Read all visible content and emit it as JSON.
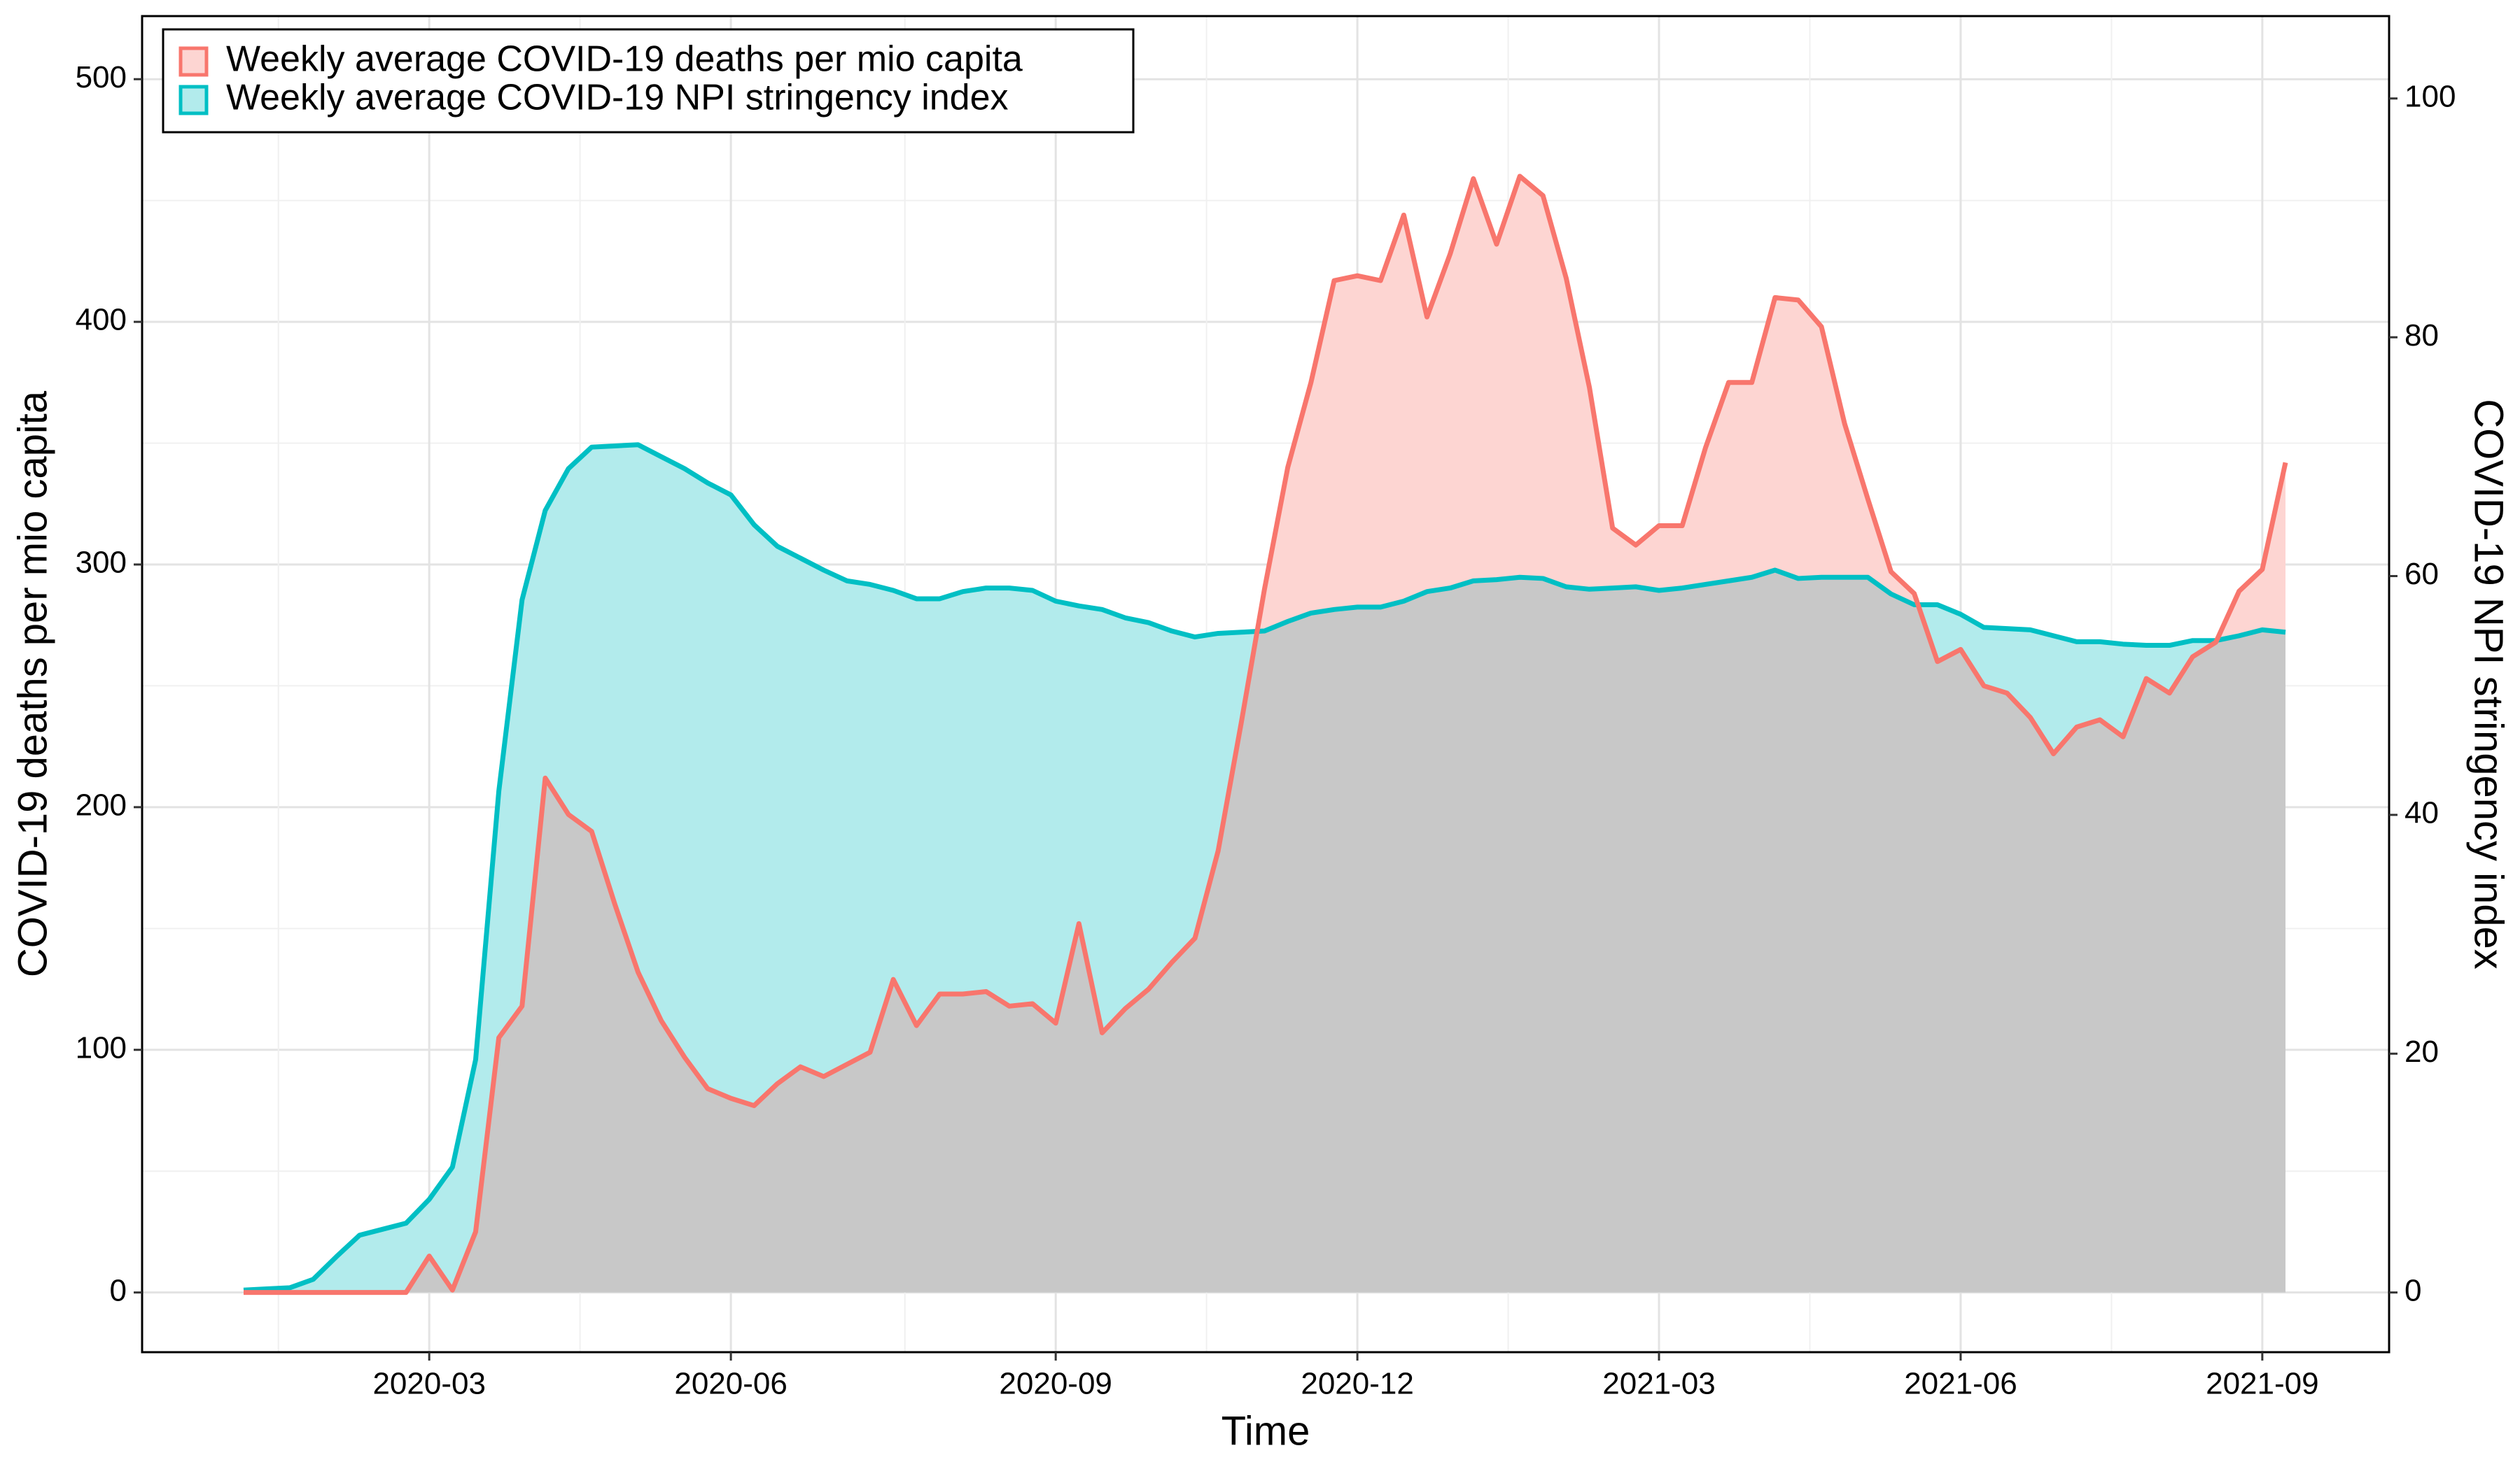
{
  "chart_data": {
    "type": "area-line",
    "x_label": "Time",
    "y_label": "COVID-19 deaths per mio capita",
    "y2_label": "COVID-19 NPI stringency index",
    "categories": [
      null,
      null,
      null,
      null,
      null,
      null,
      null,
      null,
      "2020-03",
      null,
      null,
      null,
      null,
      null,
      null,
      null,
      null,
      null,
      null,
      null,
      null,
      "2020-06",
      null,
      null,
      null,
      null,
      null,
      null,
      null,
      null,
      null,
      null,
      null,
      null,
      null,
      "2020-09",
      null,
      null,
      null,
      null,
      null,
      null,
      null,
      null,
      null,
      null,
      null,
      null,
      "2020-12",
      null,
      null,
      null,
      null,
      null,
      null,
      null,
      null,
      null,
      null,
      null,
      null,
      "2021-03",
      null,
      null,
      null,
      null,
      null,
      null,
      null,
      null,
      null,
      null,
      null,
      null,
      "2021-06",
      null,
      null,
      null,
      null,
      null,
      null,
      null,
      null,
      null,
      null,
      null,
      null,
      "2021-09",
      null
    ],
    "series": [
      {
        "name": "Weekly average COVID-19 deaths per mio capita",
        "color": "#F8766D",
        "fill": "#FDD5D2",
        "axis": "y",
        "values": [
          0,
          0,
          0,
          0,
          0,
          0,
          0,
          0,
          15,
          1,
          25,
          105,
          118,
          212,
          197,
          190,
          160,
          132,
          112,
          97,
          84,
          80,
          77,
          86,
          93,
          89,
          94,
          99,
          129,
          110,
          123,
          123,
          124,
          118,
          119,
          111,
          152,
          107,
          117,
          125,
          136,
          146,
          182,
          235,
          290,
          340,
          375,
          417,
          419,
          417,
          444,
          402,
          428,
          459,
          432,
          460,
          452,
          418,
          373,
          315,
          308,
          316,
          316,
          348,
          375,
          375,
          410,
          409,
          398,
          358,
          327,
          297,
          288,
          260,
          265,
          250,
          247,
          237,
          222,
          233,
          236,
          229,
          253,
          247,
          262,
          268,
          289,
          298,
          342
        ]
      },
      {
        "name": "Weekly average COVID-19 NPI stringency index",
        "color": "#00BFC4",
        "fill": "#B2EBEC",
        "axis": "y2",
        "values": [
          0.2,
          0.3,
          0.4,
          1.1,
          3,
          4.8,
          5.3,
          5.8,
          7.8,
          10.5,
          19.5,
          42,
          58,
          65.5,
          69,
          70.8,
          70.9,
          71,
          70,
          69,
          67.8,
          66.8,
          64.3,
          62.5,
          61.5,
          60.5,
          59.6,
          59.3,
          58.8,
          58.1,
          58.1,
          58.7,
          59,
          59,
          58.8,
          57.9,
          57.5,
          57.2,
          56.5,
          56.1,
          55.4,
          54.9,
          55.2,
          55.3,
          55.4,
          56.2,
          56.9,
          57.2,
          57.4,
          57.4,
          57.9,
          58.7,
          59,
          59.6,
          59.7,
          59.9,
          59.8,
          59.1,
          58.9,
          59,
          59.1,
          58.8,
          59,
          59.3,
          59.6,
          59.9,
          60.5,
          59.8,
          59.9,
          59.9,
          59.9,
          58.5,
          57.6,
          57.6,
          56.8,
          55.7,
          55.6,
          55.5,
          55,
          54.5,
          54.5,
          54.3,
          54.2,
          54.2,
          54.6,
          54.6,
          55,
          55.5,
          55.3
        ]
      }
    ],
    "overlap_color": "#C8C8C8",
    "ylim": [
      -24.6,
      526
    ],
    "yticks": [
      0,
      100,
      200,
      300,
      400,
      500
    ],
    "y2lim": [
      -5,
      106.9
    ],
    "y2ticks": [
      0,
      20,
      40,
      60,
      80,
      100
    ],
    "grid": true,
    "legend": "top-left"
  }
}
